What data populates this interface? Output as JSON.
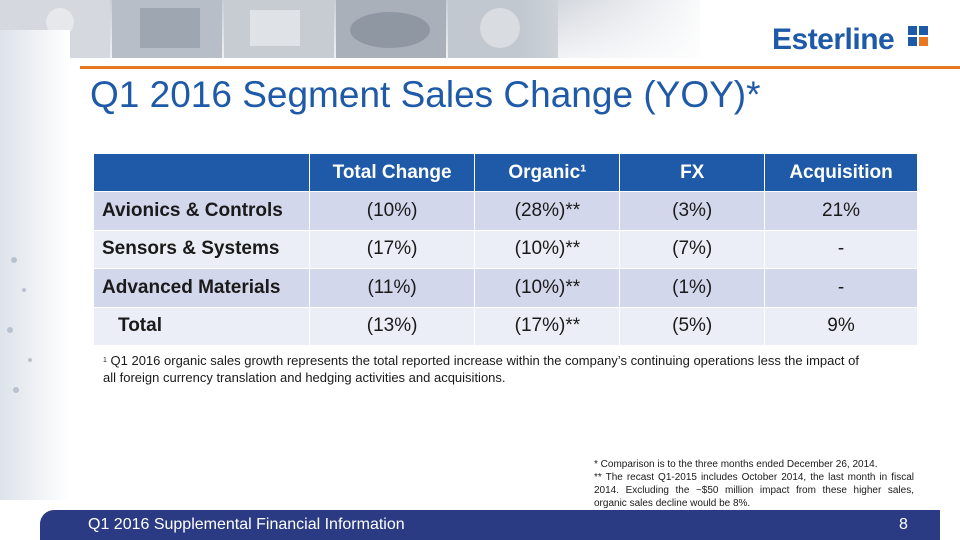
{
  "header": {
    "logo_text": "Esterline",
    "title": "Q1 2016 Segment Sales Change (YOY)*"
  },
  "table": {
    "columns": [
      "",
      "Total Change",
      "Organic¹",
      "FX",
      "Acquisition"
    ],
    "rows": [
      {
        "label": "Avionics & Controls",
        "total_change": "(10%)",
        "organic": "(28%)**",
        "fx": "(3%)",
        "acquisition": "21%"
      },
      {
        "label": "Sensors & Systems",
        "total_change": "(17%)",
        "organic": "(10%)**",
        "fx": "(7%)",
        "acquisition": "-"
      },
      {
        "label": "Advanced Materials",
        "total_change": "(11%)",
        "organic": "(10%)**",
        "fx": "(1%)",
        "acquisition": "-"
      },
      {
        "label": "Total",
        "total_change": "(13%)",
        "organic": "(17%)**",
        "fx": "(5%)",
        "acquisition": "9%"
      }
    ]
  },
  "footnote": {
    "marker": "1",
    "text": " Q1 2016 organic sales growth represents the total reported increase within the company’s continuing operations less the impact of all foreign currency translation and hedging activities and acquisitions."
  },
  "notes": {
    "line1": "*  Comparison is to the three months ended December 26, 2014.",
    "line2": "**  The recast Q1-2015 includes October 2014, the last month in fiscal 2014.  Excluding the ~$50 million impact from these higher sales, organic sales decline would be 8%."
  },
  "footer": {
    "title": "Q1 2016 Supplemental Financial Information",
    "page": "8"
  },
  "colors": {
    "brand_blue": "#1e5aa8",
    "accent_orange": "#e87722",
    "footer_navy": "#2b3b83"
  }
}
